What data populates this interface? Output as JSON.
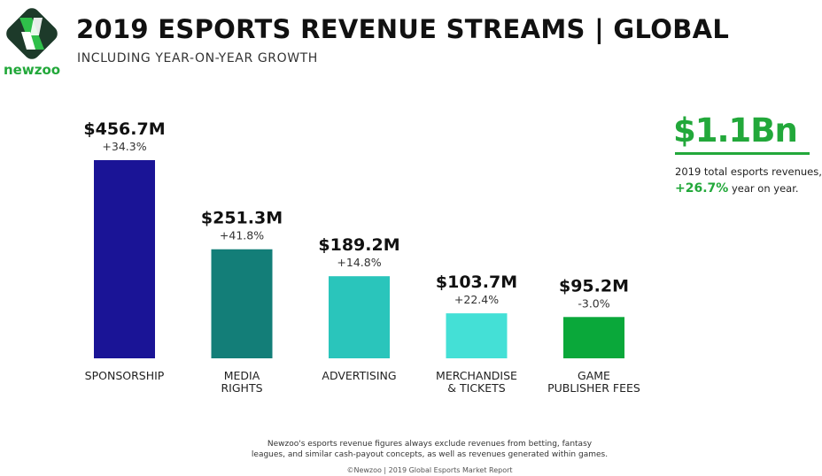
{
  "header": {
    "title": "2019 ESPORTS REVENUE STREAMS | GLOBAL",
    "subtitle": "INCLUDING YEAR-ON-YEAR GROWTH",
    "logo_text": "newzoo"
  },
  "chart_data": {
    "type": "bar",
    "title": "2019 ESPORTS REVENUE STREAMS | GLOBAL",
    "subtitle": "INCLUDING YEAR-ON-YEAR GROWTH",
    "categories": [
      [
        "SPONSORSHIP"
      ],
      [
        "MEDIA",
        "RIGHTS"
      ],
      [
        "ADVERTISING"
      ],
      [
        "MERCHANDISE",
        "& TICKETS"
      ],
      [
        "GAME",
        "PUBLISHER FEES"
      ]
    ],
    "values": [
      456.7,
      251.3,
      189.2,
      103.7,
      95.2
    ],
    "value_labels": [
      "$456.7M",
      "$251.3M",
      "$189.2M",
      "$103.7M",
      "$95.2M"
    ],
    "growth_labels": [
      "+34.3%",
      "+41.8%",
      "+14.8%",
      "+22.4%",
      "-3.0%"
    ],
    "colors": [
      "#1a1496",
      "#137e78",
      "#2ac5bb",
      "#44e0d6",
      "#0aa83a"
    ],
    "unit": "$M",
    "ylim": [
      0,
      456.7
    ],
    "grid": false
  },
  "summary": {
    "total": "$1.1Bn",
    "desc": "2019 total esports revenues,",
    "growth": "+26.7%",
    "growth_suffix": " year on year.",
    "accent": "#22a83a"
  },
  "footer": {
    "note_line1": "Newzoo's esports revenue figures always exclude revenues from betting, fantasy",
    "note_line2": "leagues, and similar cash-payout concepts, as well as revenues generated within games.",
    "source": "©Newzoo | 2019 Global Esports Market Report"
  }
}
